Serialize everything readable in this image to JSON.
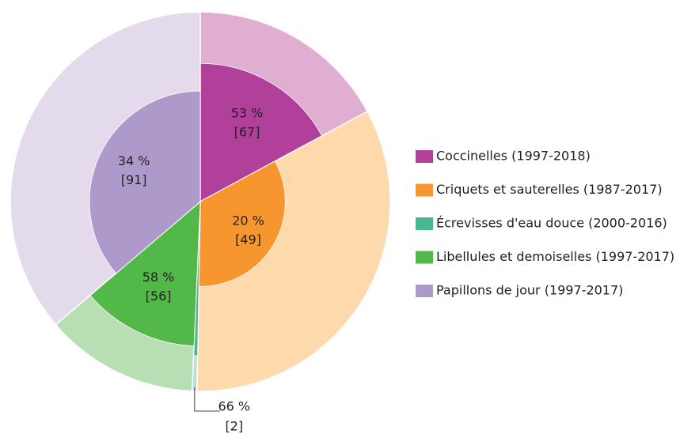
{
  "chart_data": {
    "type": "pie",
    "categories": [
      "Coccinelles (1997-2018)",
      "Criquets et sauterelles (1987-2017)",
      "Écrevisses d'eau douce (2000-2016)",
      "Libellules et demoiselles (1997-2017)",
      "Papillons de jour (1997-2017)"
    ],
    "values": [
      53,
      20,
      66,
      58,
      34
    ],
    "value_labels": [
      "53 %",
      "20 %",
      "66 %",
      "58 %",
      "34 %"
    ],
    "counts": [
      67,
      49,
      2,
      56,
      91
    ],
    "count_labels": [
      "[67]",
      "[49]",
      "[2]",
      "[56]",
      "[91]"
    ],
    "colors": [
      "#b0409a",
      "#f7962f",
      "#4ab794",
      "#52b848",
      "#ad9acb"
    ],
    "light_colors": [
      "#e0aed0",
      "#fdd9ab",
      "#b9e2d3",
      "#b8deb4",
      "#e3dbeb"
    ],
    "legend": "right"
  }
}
